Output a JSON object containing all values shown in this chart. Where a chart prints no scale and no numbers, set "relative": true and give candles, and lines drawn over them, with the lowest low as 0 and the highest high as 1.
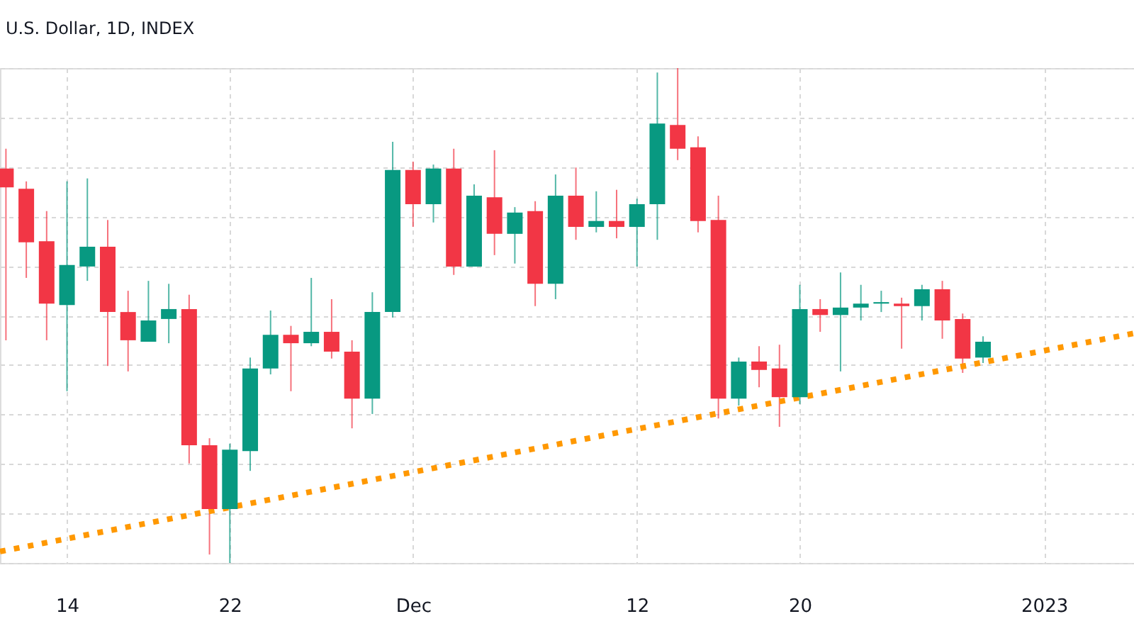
{
  "chart_data": {
    "type": "candlestick",
    "title": "U.S. Dollar, 1D, INDEX",
    "relative": true,
    "grid": true,
    "x": [
      "2022-11-11",
      "2022-11-12",
      "2022-11-13",
      "2022-11-14",
      "2022-11-15",
      "2022-11-16",
      "2022-11-17",
      "2022-11-18",
      "2022-11-19",
      "2022-11-20",
      "2022-11-21",
      "2022-11-22",
      "2022-11-23",
      "2022-11-24",
      "2022-11-25",
      "2022-11-26",
      "2022-11-27",
      "2022-11-28",
      "2022-11-29",
      "2022-11-30",
      "2022-12-01",
      "2022-12-02",
      "2022-12-03",
      "2022-12-04",
      "2022-12-05",
      "2022-12-06",
      "2022-12-07",
      "2022-12-08",
      "2022-12-09",
      "2022-12-10",
      "2022-12-11",
      "2022-12-12",
      "2022-12-13",
      "2022-12-14",
      "2022-12-15",
      "2022-12-16",
      "2022-12-17",
      "2022-12-18",
      "2022-12-19",
      "2022-12-20",
      "2022-12-21",
      "2022-12-22",
      "2022-12-23",
      "2022-12-24",
      "2022-12-25",
      "2022-12-26",
      "2022-12-27",
      "2022-12-28",
      "2022-12-29"
    ],
    "xlim": [
      "2022-11-10T17:00",
      "2023-01-05T10:00"
    ],
    "xticks": [
      {
        "value": "2022-11-14",
        "label": "14"
      },
      {
        "value": "2022-11-22",
        "label": "22"
      },
      {
        "value": "2022-12-01",
        "label": "Dec"
      },
      {
        "value": "2022-12-12",
        "label": "12"
      },
      {
        "value": "2022-12-20",
        "label": "20"
      },
      {
        "value": "2023-01-01",
        "label": "2023"
      }
    ],
    "ohlc": [
      [
        0.797,
        0.837,
        0.45,
        0.759
      ],
      [
        0.756,
        0.771,
        0.576,
        0.648
      ],
      [
        0.65,
        0.711,
        0.45,
        0.524
      ],
      [
        0.521,
        0.771,
        0.347,
        0.602
      ],
      [
        0.599,
        0.777,
        0.57,
        0.639
      ],
      [
        0.639,
        0.693,
        0.398,
        0.507
      ],
      [
        0.507,
        0.55,
        0.387,
        0.45
      ],
      [
        0.447,
        0.57,
        0.447,
        0.49
      ],
      [
        0.493,
        0.564,
        0.444,
        0.513
      ],
      [
        0.513,
        0.542,
        0.201,
        0.238
      ],
      [
        0.238,
        0.252,
        0.017,
        0.109
      ],
      [
        0.109,
        0.241,
        0.0,
        0.229
      ],
      [
        0.226,
        0.415,
        0.186,
        0.393
      ],
      [
        0.393,
        0.51,
        0.381,
        0.461
      ],
      [
        0.461,
        0.479,
        0.347,
        0.444
      ],
      [
        0.444,
        0.576,
        0.438,
        0.467
      ],
      [
        0.467,
        0.533,
        0.413,
        0.427
      ],
      [
        0.427,
        0.45,
        0.272,
        0.332
      ],
      [
        0.332,
        0.547,
        0.301,
        0.507
      ],
      [
        0.507,
        0.851,
        0.496,
        0.794
      ],
      [
        0.794,
        0.811,
        0.679,
        0.725
      ],
      [
        0.725,
        0.805,
        0.688,
        0.797
      ],
      [
        0.797,
        0.837,
        0.582,
        0.599
      ],
      [
        0.599,
        0.765,
        0.599,
        0.742
      ],
      [
        0.739,
        0.834,
        0.622,
        0.665
      ],
      [
        0.665,
        0.719,
        0.605,
        0.708
      ],
      [
        0.711,
        0.731,
        0.519,
        0.564
      ],
      [
        0.564,
        0.785,
        0.533,
        0.742
      ],
      [
        0.742,
        0.799,
        0.653,
        0.679
      ],
      [
        0.679,
        0.751,
        0.668,
        0.691
      ],
      [
        0.691,
        0.754,
        0.656,
        0.679
      ],
      [
        0.679,
        0.736,
        0.599,
        0.725
      ],
      [
        0.725,
        0.991,
        0.653,
        0.888
      ],
      [
        0.885,
        1.0,
        0.814,
        0.837
      ],
      [
        0.84,
        0.862,
        0.668,
        0.691
      ],
      [
        0.693,
        0.742,
        0.292,
        0.332
      ],
      [
        0.332,
        0.415,
        0.318,
        0.407
      ],
      [
        0.407,
        0.438,
        0.355,
        0.39
      ],
      [
        0.393,
        0.441,
        0.275,
        0.335
      ],
      [
        0.335,
        0.562,
        0.321,
        0.513
      ],
      [
        0.513,
        0.533,
        0.467,
        0.501
      ],
      [
        0.501,
        0.587,
        0.387,
        0.516
      ],
      [
        0.516,
        0.562,
        0.49,
        0.524
      ],
      [
        0.524,
        0.55,
        0.507,
        0.527
      ],
      [
        0.524,
        0.536,
        0.433,
        0.519
      ],
      [
        0.519,
        0.562,
        0.49,
        0.553
      ],
      [
        0.553,
        0.57,
        0.453,
        0.49
      ],
      [
        0.493,
        0.504,
        0.384,
        0.413
      ],
      [
        0.415,
        0.458,
        0.404,
        0.447
      ]
    ],
    "colors": [
      "#f23645",
      "#f23645",
      "#f23645",
      "#089981",
      "#089981",
      "#f23645",
      "#f23645",
      "#089981",
      "#089981",
      "#f23645",
      "#f23645",
      "#089981",
      "#089981",
      "#089981",
      "#f23645",
      "#089981",
      "#f23645",
      "#f23645",
      "#089981",
      "#089981",
      "#f23645",
      "#089981",
      "#f23645",
      "#089981",
      "#f23645",
      "#089981",
      "#f23645",
      "#089981",
      "#f23645",
      "#089981",
      "#f23645",
      "#089981",
      "#089981",
      "#f23645",
      "#f23645",
      "#f23645",
      "#089981",
      "#f23645",
      "#f23645",
      "#089981",
      "#f23645",
      "#089981",
      "#089981",
      "#089981",
      "#f23645",
      "#089981",
      "#f23645",
      "#f23645",
      "#089981"
    ],
    "series": [
      {
        "type": "line",
        "x": [
          "2022-11-10T17:00",
          "2023-01-05T10:00"
        ],
        "values": [
          0.023,
          0.464
        ],
        "color": "#ff9800",
        "line_style": "dotted"
      }
    ]
  }
}
